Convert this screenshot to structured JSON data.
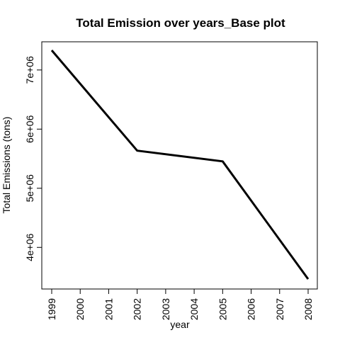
{
  "chart_data": {
    "type": "line",
    "title": "Total Emission over years_Base plot",
    "xlabel": "year",
    "ylabel": "Total Emissions (tons)",
    "x": [
      1999,
      2002,
      2005,
      2008
    ],
    "values": [
      7332967,
      5635780,
      5454703,
      3464206
    ],
    "xticks": [
      "1999",
      "2000",
      "2001",
      "2002",
      "2003",
      "2004",
      "2005",
      "2006",
      "2007",
      "2008"
    ],
    "yticks": [
      "4e+06",
      "5e+06",
      "6e+06",
      "7e+06"
    ],
    "xlim": [
      1999,
      2008
    ],
    "ylim": [
      3464206,
      7332967
    ],
    "line_color": "#000000",
    "grid": false,
    "legend": "none"
  }
}
